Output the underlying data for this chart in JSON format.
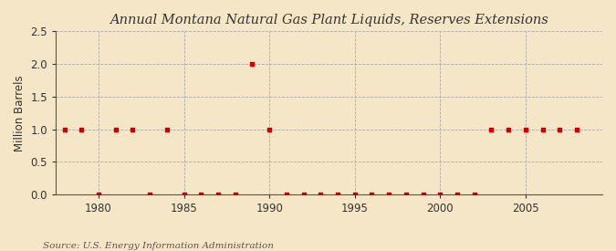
{
  "title": "Annual Montana Natural Gas Plant Liquids, Reserves Extensions",
  "ylabel": "Million Barrels",
  "source": "Source: U.S. Energy Information Administration",
  "background_color": "#f5e6c8",
  "plot_background_color": "#fdf5e6",
  "marker_color": "#cc0000",
  "marker_size": 3.5,
  "xlim": [
    1977.5,
    2009.5
  ],
  "ylim": [
    0.0,
    2.5
  ],
  "yticks": [
    0.0,
    0.5,
    1.0,
    1.5,
    2.0,
    2.5
  ],
  "xticks": [
    1980,
    1985,
    1990,
    1995,
    2000,
    2005
  ],
  "years": [
    1978,
    1979,
    1980,
    1981,
    1982,
    1983,
    1984,
    1985,
    1986,
    1987,
    1988,
    1989,
    1990,
    1991,
    1992,
    1993,
    1994,
    1995,
    1996,
    1997,
    1998,
    1999,
    2000,
    2001,
    2002,
    2003,
    2004,
    2005,
    2006,
    2007,
    2008
  ],
  "values": [
    1.0,
    1.0,
    0.0,
    1.0,
    1.0,
    0.0,
    1.0,
    0.0,
    0.0,
    0.0,
    0.0,
    2.0,
    1.0,
    0.0,
    0.0,
    0.0,
    0.0,
    0.0,
    0.0,
    0.0,
    0.0,
    0.0,
    0.0,
    0.0,
    0.0,
    1.0,
    1.0,
    1.0,
    1.0,
    1.0,
    1.0
  ],
  "title_fontsize": 10.5,
  "axis_fontsize": 8.5,
  "tick_fontsize": 8.5,
  "source_fontsize": 7.5
}
